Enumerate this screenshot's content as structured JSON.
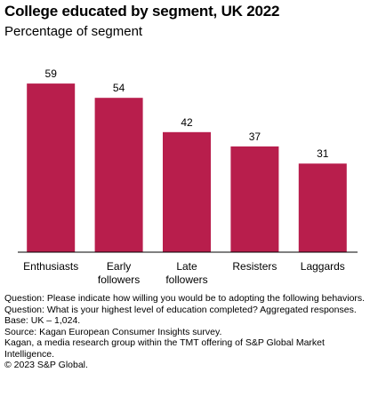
{
  "title": "College educated by segment, UK 2022",
  "subtitle": "Percentage of segment",
  "colors": {
    "bar": "#b81e4c",
    "axis": "#000000"
  },
  "chart_data": {
    "type": "bar",
    "categories": [
      "Enthusiasts",
      "Early followers",
      "Late followers",
      "Resisters",
      "Laggards"
    ],
    "category_lines": [
      [
        "Enthusiasts"
      ],
      [
        "Early",
        "followers"
      ],
      [
        "Late",
        "followers"
      ],
      [
        "Resisters"
      ],
      [
        "Laggards"
      ]
    ],
    "values": [
      59,
      54,
      42,
      37,
      31
    ],
    "data_labels": [
      "59",
      "54",
      "42",
      "37",
      "31"
    ],
    "ylim": [
      0,
      64
    ],
    "xlabel": "",
    "ylabel": "",
    "grid": false,
    "legend": "none"
  },
  "notes": [
    "Question: Please indicate how willing you would be to adopting the following behaviors.",
    "Question: What is your highest level of education completed? Aggregated responses.",
    "Base: UK – 1,024.",
    "Source: Kagan European Consumer Insights survey.",
    "Kagan, a media research group within the TMT offering of S&P Global Market Intelligence.",
    "© 2023 S&P Global."
  ]
}
